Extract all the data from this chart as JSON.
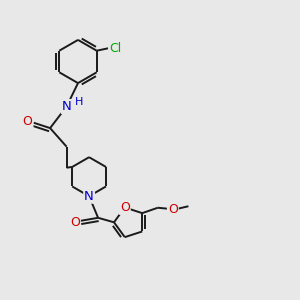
{
  "bg_color": "#e8e8e8",
  "bond_color": "#1a1a1a",
  "bond_width": 1.4,
  "atom_colors": {
    "N": "#0000cc",
    "O": "#cc0000",
    "Cl": "#00aa00",
    "H": "#0000cc"
  },
  "font_size": 8.5
}
